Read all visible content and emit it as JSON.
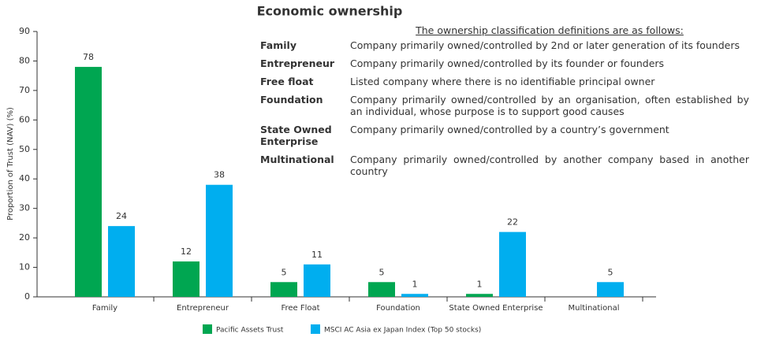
{
  "chart_data": {
    "type": "bar",
    "title": "Economic ownership",
    "y_label": "Proportion of Trust (NAV) (%)",
    "categories": [
      "Family",
      "Entrepreneur",
      "Free Float",
      "Foundation",
      "State Owned Enterprise",
      "Multinational"
    ],
    "series": [
      {
        "name": "Pacific Assets Trust",
        "color": "#00a651",
        "values": [
          78,
          12,
          5,
          5,
          1,
          null
        ]
      },
      {
        "name": "MSCI AC Asia ex Japan Index (Top 50 stocks)",
        "color": "#00aeef",
        "values": [
          24,
          38,
          11,
          1,
          22,
          5
        ]
      }
    ],
    "ylim": [
      0,
      90
    ],
    "yticks": [
      0,
      10,
      20,
      30,
      40,
      50,
      60,
      70,
      80,
      90
    ],
    "grid": false
  },
  "definitions": {
    "heading": "The ownership classification definitions are as follows:",
    "rows": [
      {
        "term": "Family",
        "definition": "Company primarily owned/controlled by 2nd or later generation of its founders"
      },
      {
        "term": "Entrepreneur",
        "definition": "Company primarily owned/controlled by its founder or founders"
      },
      {
        "term": "Free float",
        "definition": "Listed company where there is no identifiable principal owner"
      },
      {
        "term": "Foundation",
        "definition": "Company primarily owned/controlled by an organisation, often established by an individual, whose purpose is to support good causes"
      },
      {
        "term": "State Owned Enterprise",
        "definition": "Company primarily owned/controlled by a country’s government"
      },
      {
        "term": "Multinational",
        "definition": "Company primarily owned/controlled by another company based in another country"
      }
    ]
  }
}
